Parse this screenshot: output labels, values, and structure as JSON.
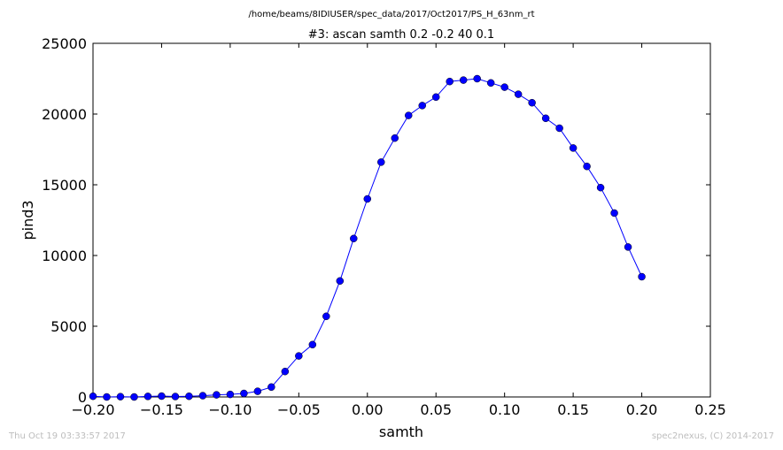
{
  "chart_data": {
    "type": "line",
    "suptitle": "/home/beams/8IDIUSER/spec_data/2017/Oct2017/PS_H_63nm_rt",
    "title": "#3: ascan  samth 0.2 -0.2  40 0.1",
    "xlabel": "samth",
    "ylabel": "pind3",
    "xlim": [
      -0.2,
      0.25
    ],
    "ylim": [
      0,
      25000
    ],
    "xticks": [
      "−0.20",
      "−0.15",
      "−0.10",
      "−0.05",
      "0.00",
      "0.05",
      "0.10",
      "0.15",
      "0.20",
      "0.25"
    ],
    "yticks": [
      "0",
      "5000",
      "10000",
      "15000",
      "20000",
      "25000"
    ],
    "grid": false,
    "series": [
      {
        "color": "#0000ff",
        "marker": "circle",
        "x": [
          -0.2,
          -0.19,
          -0.18,
          -0.17,
          -0.16,
          -0.15,
          -0.14,
          -0.13,
          -0.12,
          -0.11,
          -0.1,
          -0.09,
          -0.08,
          -0.07,
          -0.06,
          -0.05,
          -0.04,
          -0.03,
          -0.02,
          -0.01,
          0.0,
          0.01,
          0.02,
          0.03,
          0.04,
          0.05,
          0.06,
          0.07,
          0.08,
          0.09,
          0.1,
          0.11,
          0.12,
          0.13,
          0.14,
          0.15,
          0.16,
          0.17,
          0.18,
          0.19,
          0.2
        ],
        "y": [
          50,
          0,
          20,
          0,
          40,
          60,
          30,
          50,
          90,
          150,
          180,
          250,
          400,
          700,
          1800,
          2900,
          3700,
          5700,
          8200,
          11200,
          14000,
          16600,
          18300,
          19900,
          20600,
          21200,
          22300,
          22400,
          22500,
          22200,
          21900,
          21400,
          20800,
          19700,
          19000,
          17600,
          16300,
          14800,
          13000,
          10600,
          8500
        ]
      }
    ]
  },
  "footer": {
    "timestamp": "Thu Oct 19 03:33:57 2017",
    "credit": "spec2nexus, (C) 2014-2017"
  }
}
